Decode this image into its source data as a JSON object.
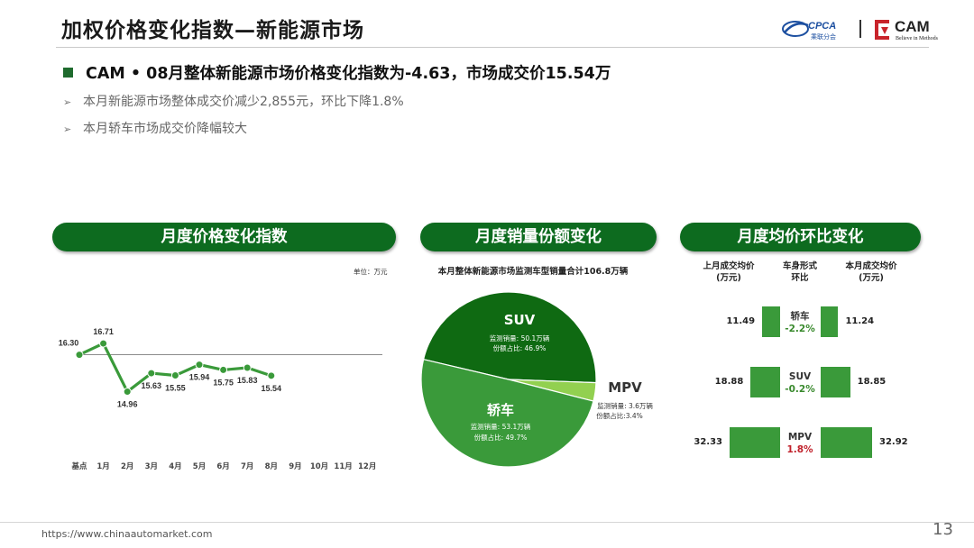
{
  "page": {
    "title": "加权价格变化指数—新能源市场",
    "headline": "CAM • 08月整体新能源市场价格变化指数为-4.63，市场成交价15.54万",
    "bullets": [
      "本月新能源市场整体成交价减少2,855元，环比下降1.8%",
      "本月轿车市场成交价降幅较大"
    ],
    "footer_url": "https://www.chinaautomarket.com",
    "page_number": "13",
    "logos": {
      "cpca": "CPCA",
      "cpca_sub": "乘联分会",
      "cam": "CAM",
      "cam_sub": "Believe in Methods"
    }
  },
  "panels": {
    "line": {
      "header": "月度价格变化指数",
      "unit": "单位：万元"
    },
    "pie": {
      "header": "月度销量份额变化",
      "caption": "本月整体新能源市场监测车型销量合计106.8万辆"
    },
    "compare": {
      "header": "月度均价环比变化",
      "col_left": [
        "上月成交均价",
        "(万元)"
      ],
      "col_mid": [
        "车身形式",
        "环比"
      ],
      "col_right": [
        "本月成交均价",
        "(万元)"
      ]
    }
  },
  "chart_data": [
    {
      "type": "line",
      "categories": [
        "基点",
        "1月",
        "2月",
        "3月",
        "4月",
        "5月",
        "6月",
        "7月",
        "8月",
        "9月",
        "10月",
        "11月",
        "12月"
      ],
      "series": [
        {
          "values": [
            16.3,
            16.71,
            14.96,
            15.63,
            15.55,
            15.94,
            15.75,
            15.83,
            15.54
          ]
        }
      ],
      "labels": [
        "16.30",
        "16.71",
        "14.96",
        "15.63",
        "15.55",
        "15.94",
        "15.75",
        "15.83",
        "15.54"
      ],
      "baseline": 16.3,
      "ylim": [
        13.8,
        17.4
      ],
      "color": "#3a9a3a"
    },
    {
      "type": "pie",
      "slices": [
        {
          "name": "SUV",
          "value": 46.9,
          "volume_label": "监测销量: 50.1万辆",
          "share_label": "份额占比: 46.9%",
          "color": "#0f6a12"
        },
        {
          "name": "MPV",
          "value": 3.4,
          "volume_label": "监测销量: 3.6万辆",
          "share_label": "份额占比:3.4%",
          "color": "#92d050"
        },
        {
          "name": "轿车",
          "value": 49.7,
          "volume_label": "监测销量: 53.1万辆",
          "share_label": "份额占比: 49.7%",
          "color": "#3a9a3a"
        }
      ]
    },
    {
      "type": "bar",
      "rows": [
        {
          "segment": "轿车",
          "change": "-2.2%",
          "direction": "down",
          "last": 11.49,
          "current": 11.24,
          "last_label": "11.49",
          "current_label": "11.24"
        },
        {
          "segment": "SUV",
          "change": "-0.2%",
          "direction": "down",
          "last": 18.88,
          "current": 18.85,
          "last_label": "18.88",
          "current_label": "18.85"
        },
        {
          "segment": "MPV",
          "change": "1.8%",
          "direction": "up",
          "last": 32.33,
          "current": 32.92,
          "last_label": "32.33",
          "current_label": "32.92"
        }
      ],
      "max_value": 32.92,
      "color": "#3a9a3a"
    }
  ]
}
